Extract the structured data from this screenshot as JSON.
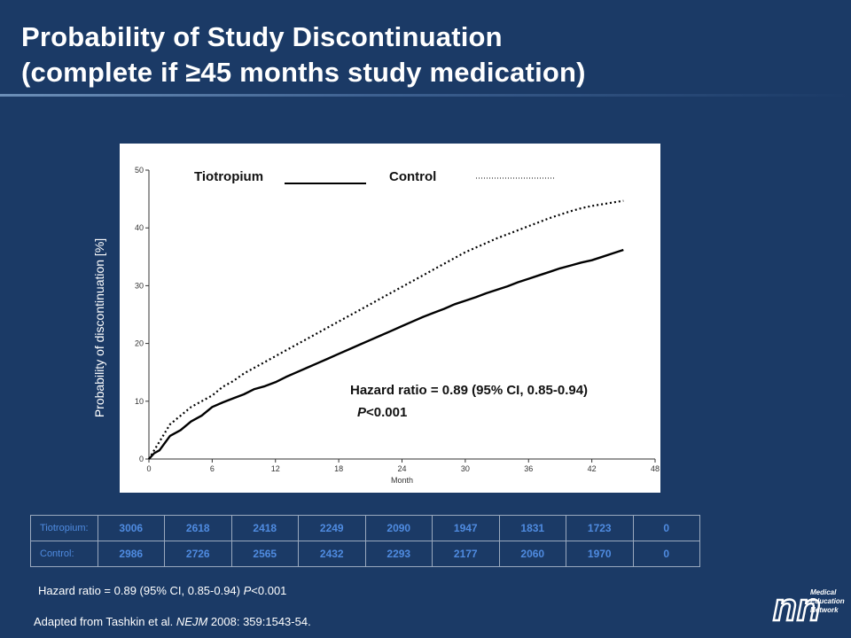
{
  "title": {
    "line1": "Probability of Study Discontinuation",
    "line2": "(complete if ≥45 months study medication)"
  },
  "chart_data": {
    "type": "line",
    "ylabel": "Probability of discontinuation [%]",
    "xlabel": "Month",
    "xlim": [
      0,
      48
    ],
    "ylim": [
      0,
      50
    ],
    "x_ticks": [
      0,
      6,
      12,
      18,
      24,
      30,
      36,
      42,
      48
    ],
    "y_ticks": [
      0,
      10,
      20,
      30,
      40,
      50
    ],
    "grid": false,
    "legend": {
      "placement": "top",
      "tiotropium_label": "Tiotropium",
      "control_label": "Control"
    },
    "series": [
      {
        "name": "Tiotropium",
        "style": "solid",
        "x": [
          0,
          0.5,
          1,
          2,
          3,
          4,
          5,
          6,
          7,
          8,
          9,
          10,
          11,
          12,
          13,
          14,
          15,
          16,
          17,
          18,
          19,
          20,
          21,
          22,
          23,
          24,
          25,
          26,
          27,
          28,
          29,
          30,
          31,
          32,
          33,
          34,
          35,
          36,
          37,
          38,
          39,
          40,
          41,
          42,
          43,
          44,
          45
        ],
        "values": [
          0,
          1,
          1.5,
          4,
          5,
          6.5,
          7.5,
          9,
          9.8,
          10.5,
          11.2,
          12.1,
          12.6,
          13.3,
          14.2,
          15.0,
          15.8,
          16.6,
          17.4,
          18.2,
          19.0,
          19.8,
          20.6,
          21.4,
          22.2,
          23.0,
          23.8,
          24.6,
          25.3,
          26.0,
          26.8,
          27.4,
          28.0,
          28.7,
          29.3,
          29.9,
          30.6,
          31.2,
          31.8,
          32.4,
          33.0,
          33.5,
          34.0,
          34.4,
          35.0,
          35.6,
          36.2
        ]
      },
      {
        "name": "Control",
        "style": "dotted",
        "x": [
          0,
          0.5,
          1,
          2,
          3,
          4,
          5,
          6,
          7,
          8,
          9,
          10,
          11,
          12,
          13,
          14,
          15,
          16,
          17,
          18,
          19,
          20,
          21,
          22,
          23,
          24,
          25,
          26,
          27,
          28,
          29,
          30,
          31,
          32,
          33,
          34,
          35,
          36,
          37,
          38,
          39,
          40,
          41,
          42,
          43,
          44,
          45
        ],
        "values": [
          0,
          1.5,
          3,
          6,
          7.5,
          9,
          10,
          11,
          12.5,
          13.5,
          14.8,
          15.8,
          16.8,
          17.8,
          18.8,
          19.8,
          20.8,
          21.8,
          22.8,
          23.8,
          24.8,
          25.8,
          26.8,
          27.8,
          28.8,
          29.8,
          30.8,
          31.8,
          32.8,
          33.8,
          34.8,
          35.8,
          36.6,
          37.4,
          38.2,
          38.9,
          39.6,
          40.3,
          41.0,
          41.7,
          42.3,
          42.9,
          43.4,
          43.8,
          44.1,
          44.4,
          44.7
        ]
      }
    ],
    "annotation": {
      "hazard_line": "Hazard ratio = 0.89 (95% CI, 0.85-0.94)",
      "p_label": "P",
      "p_value": "<0.001"
    }
  },
  "table": {
    "rows": [
      {
        "label": "Tiotropium:",
        "values": [
          "3006",
          "2618",
          "2418",
          "2249",
          "2090",
          "1947",
          "1831",
          "1723",
          "0"
        ]
      },
      {
        "label": "Control:",
        "values": [
          "2986",
          "2726",
          "2565",
          "2432",
          "2293",
          "2177",
          "2060",
          "1970",
          "0"
        ]
      }
    ]
  },
  "footnotes": {
    "hazard_text": "Hazard ratio = 0.89 (95% CI, 0.85-0.94)",
    "p_label": "P",
    "p_value": "<0.001",
    "source_prefix": "Adapted from Tashkin et al. ",
    "journal": "NEJM",
    "source_suffix": " 2008: 359:1543-54."
  },
  "logo": {
    "mark": "nn",
    "line1": "Medical",
    "line2": "Education",
    "line3": "Network"
  },
  "colors": {
    "background": "#1b3a66",
    "table_text": "#4f8be0",
    "curve": "#000000"
  }
}
